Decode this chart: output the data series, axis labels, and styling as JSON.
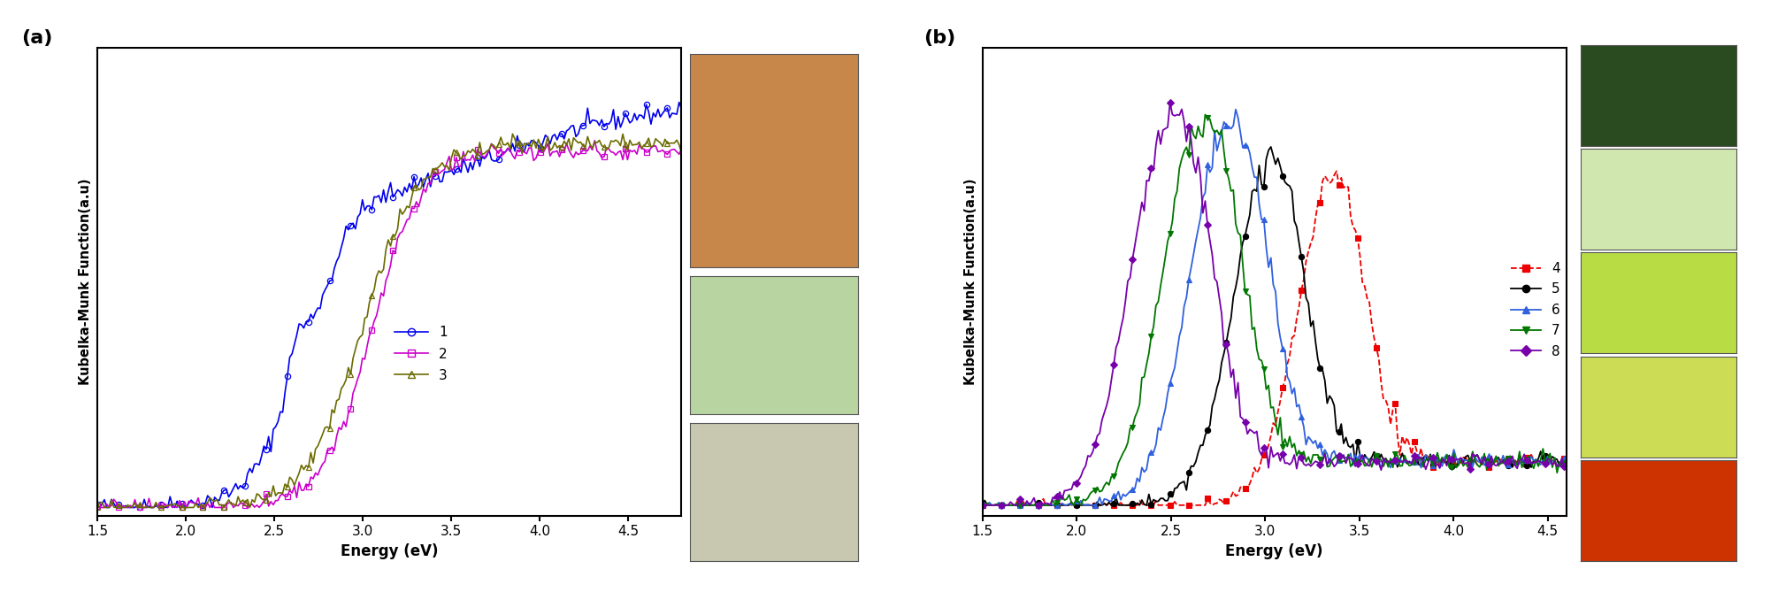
{
  "panel_a": {
    "xlabel": "Energy (eV)",
    "ylabel": "Kubelka-Munk Function(a.u)",
    "xlim": [
      1.5,
      4.8
    ],
    "series": [
      {
        "label": "1",
        "color": "#0000EE",
        "marker": "o",
        "lw": 1.2
      },
      {
        "label": "2",
        "color": "#CC00CC",
        "marker": "s",
        "lw": 1.2
      },
      {
        "label": "3",
        "color": "#6B6B00",
        "marker": "^",
        "lw": 1.2
      }
    ]
  },
  "panel_b": {
    "xlabel": "Energy (eV)",
    "ylabel": "Kubelka-Munk Function(a.u)",
    "xlim": [
      1.5,
      4.6
    ],
    "series": [
      {
        "label": "4",
        "color": "#EE0000",
        "marker": "s",
        "lw": 1.3,
        "linestyle": "--"
      },
      {
        "label": "5",
        "color": "#000000",
        "marker": "o",
        "lw": 1.3,
        "linestyle": "-"
      },
      {
        "label": "6",
        "color": "#3060DD",
        "marker": "^",
        "lw": 1.3,
        "linestyle": "-"
      },
      {
        "label": "7",
        "color": "#007700",
        "marker": "v",
        "lw": 1.3,
        "linestyle": "-"
      },
      {
        "label": "8",
        "color": "#7700AA",
        "marker": "D",
        "lw": 1.3,
        "linestyle": "-"
      }
    ]
  }
}
